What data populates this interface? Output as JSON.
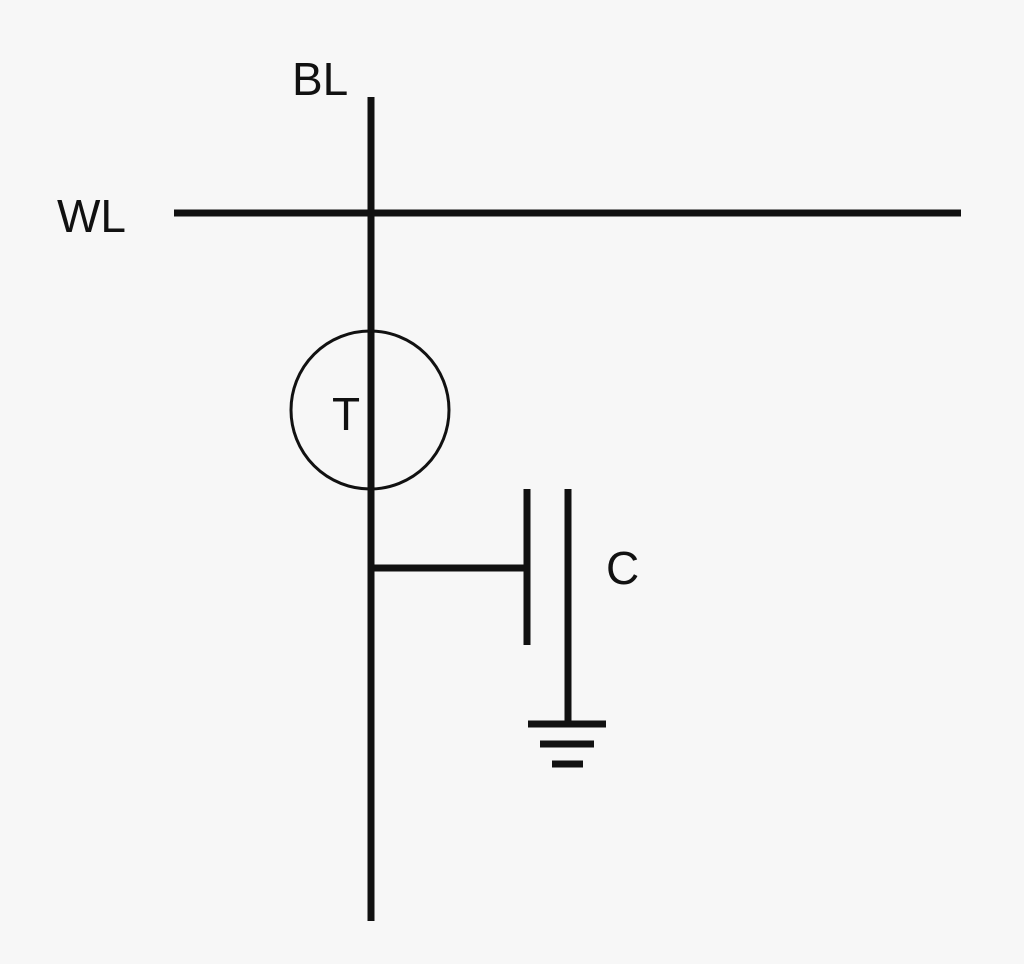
{
  "labels": {
    "bit_line": "BL",
    "word_line": "WL",
    "transistor": "T",
    "capacitor": "C"
  },
  "colors": {
    "background": "#f7f7f7",
    "stroke": "#111111"
  }
}
